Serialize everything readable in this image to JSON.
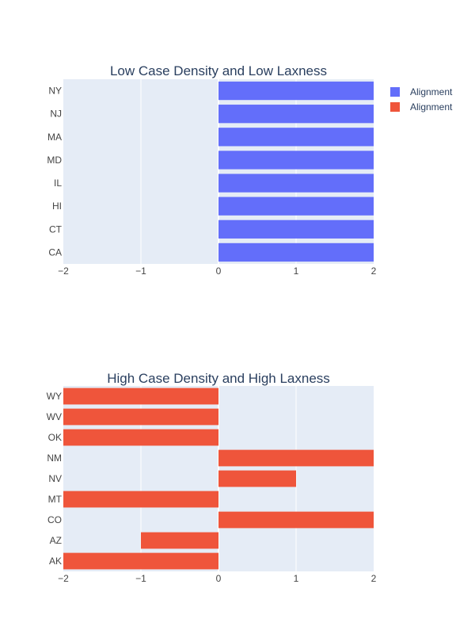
{
  "chart_data": [
    {
      "type": "bar",
      "orientation": "horizontal",
      "title": "Low Case Density and Low Laxness",
      "categories": [
        "CA",
        "CT",
        "HI",
        "IL",
        "MD",
        "MA",
        "NJ",
        "NY"
      ],
      "series": [
        {
          "name": "Alignment",
          "values": [
            2,
            2,
            2,
            2,
            2,
            2,
            2,
            2
          ],
          "color": "#636efa"
        }
      ],
      "xlim": [
        -2,
        2
      ],
      "xticks": [
        "−2",
        "−1",
        "0",
        "1",
        "2"
      ],
      "grid": true
    },
    {
      "type": "bar",
      "orientation": "horizontal",
      "title": "High Case Density and High Laxness",
      "categories": [
        "AK",
        "AZ",
        "CO",
        "MT",
        "NV",
        "NM",
        "OK",
        "WV",
        "WY"
      ],
      "series": [
        {
          "name": "Alignment",
          "values": [
            -2,
            -1,
            2,
            -2,
            1,
            2,
            -2,
            -2,
            -2
          ],
          "color": "#ef553b"
        }
      ],
      "xlim": [
        -2,
        2
      ],
      "xticks": [
        "−2",
        "−1",
        "0",
        "1",
        "2"
      ],
      "grid": true
    }
  ],
  "legend": {
    "placement": "top-right",
    "items": [
      {
        "label": "Alignment",
        "color": "#636efa"
      },
      {
        "label": "Alignment",
        "color": "#ef553b"
      }
    ]
  },
  "colors": {
    "plot_bg": "#e5ecf6",
    "grid": "#ffffff",
    "title": "#2a3f5f",
    "tick": "#444444"
  }
}
